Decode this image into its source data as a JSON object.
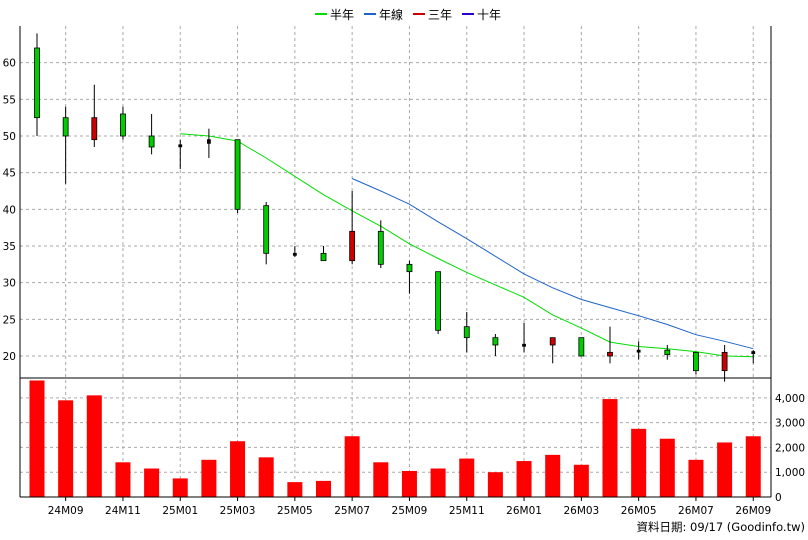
{
  "legend": [
    {
      "name": "半年",
      "color": "#00dd00"
    },
    {
      "name": "年線",
      "color": "#1e64c8"
    },
    {
      "name": "三年",
      "color": "#cc0000"
    },
    {
      "name": "十年",
      "color": "#2b00cc"
    }
  ],
  "footer": {
    "text": "資料日期: 09/17  (Goodinfo.tw)"
  },
  "colors": {
    "up": "#00cc00",
    "down": "#cc0000",
    "volume": "#ff0000",
    "grid": "#aaaaaa"
  },
  "chart_data": [
    {
      "type": "candlestick",
      "x_tick_labels": [
        "24M09",
        "24M11",
        "25M01",
        "25M03",
        "25M05",
        "25M07",
        "25M09",
        "25M11",
        "26M01",
        "26M03",
        "26M05",
        "26M07",
        "26M09"
      ],
      "ylim": [
        17,
        65
      ],
      "y_ticks": [
        20,
        25,
        30,
        35,
        40,
        45,
        50,
        55,
        60
      ],
      "grid": true,
      "candles": [
        {
          "open": 52.5,
          "high": 64,
          "low": 50,
          "close": 62,
          "color": "green"
        },
        {
          "open": 50,
          "high": 54,
          "low": 43.5,
          "close": 52.5,
          "color": "green"
        },
        {
          "open": 52.5,
          "high": 57,
          "low": 48.5,
          "close": 49.5,
          "color": "red"
        },
        {
          "open": 50,
          "high": 54,
          "low": 49.5,
          "close": 53,
          "color": "green"
        },
        {
          "open": 48.5,
          "high": 53,
          "low": 47.5,
          "close": 50,
          "color": "green"
        },
        {
          "open": 48.6,
          "high": 49.5,
          "low": 45.5,
          "close": 48.8,
          "color": "black"
        },
        {
          "open": 49,
          "high": 51,
          "low": 47,
          "close": 49.5,
          "color": "black"
        },
        {
          "open": 40,
          "high": 49.5,
          "low": 39.5,
          "close": 49.5,
          "color": "green"
        },
        {
          "open": 34,
          "high": 41,
          "low": 32.5,
          "close": 40.5,
          "color": "green"
        },
        {
          "open": 33.8,
          "high": 35,
          "low": 33.5,
          "close": 34,
          "color": "black"
        },
        {
          "open": 33,
          "high": 35,
          "low": 33,
          "close": 34,
          "color": "green"
        },
        {
          "open": 37,
          "high": 42.5,
          "low": 32.5,
          "close": 33,
          "color": "red"
        },
        {
          "open": 32.5,
          "high": 38.5,
          "low": 32,
          "close": 37,
          "color": "green"
        },
        {
          "open": 31.5,
          "high": 33,
          "low": 28.5,
          "close": 32.5,
          "color": "green"
        },
        {
          "open": 23.5,
          "high": 31.5,
          "low": 23,
          "close": 31.5,
          "color": "green"
        },
        {
          "open": 22.5,
          "high": 26,
          "low": 20.5,
          "close": 24,
          "color": "green"
        },
        {
          "open": 21.5,
          "high": 23,
          "low": 20,
          "close": 22.5,
          "color": "green"
        },
        {
          "open": 21.4,
          "high": 24.5,
          "low": 20.5,
          "close": 21.6,
          "color": "black"
        },
        {
          "open": 22.5,
          "high": 22.5,
          "low": 19,
          "close": 21.5,
          "color": "red"
        },
        {
          "open": 20,
          "high": 22.5,
          "low": 20,
          "close": 22.5,
          "color": "green"
        },
        {
          "open": 20.5,
          "high": 24,
          "low": 19,
          "close": 20,
          "color": "red"
        },
        {
          "open": 20.6,
          "high": 22,
          "low": 19.5,
          "close": 20.8,
          "color": "black"
        },
        {
          "open": 20.2,
          "high": 21.5,
          "low": 19.5,
          "close": 20.8,
          "color": "green"
        },
        {
          "open": 18,
          "high": 20.5,
          "low": 17.5,
          "close": 20.5,
          "color": "green"
        },
        {
          "open": 20.5,
          "high": 21.5,
          "low": 16.5,
          "close": 18,
          "color": "red"
        },
        {
          "open": 20.4,
          "high": 20.8,
          "low": 19,
          "close": 20.6,
          "color": "black"
        }
      ],
      "series": [
        {
          "name": "半年",
          "color": "#00dd00",
          "start_index": 5,
          "values": [
            50.3,
            50,
            49.3,
            47,
            44.5,
            42,
            39.8,
            37.7,
            35.3,
            33.3,
            31.4,
            29.7,
            28,
            25.6,
            23.8,
            21.9,
            21.3,
            21,
            20.6,
            20,
            19.9
          ]
        },
        {
          "name": "年線",
          "color": "#1e64c8",
          "start_index": 11,
          "values": [
            44.2,
            42.5,
            40.7,
            38.3,
            36,
            33.6,
            31.2,
            29.3,
            27.7,
            26.6,
            25.5,
            24.3,
            22.9,
            22,
            21
          ]
        }
      ]
    },
    {
      "type": "bar",
      "series_name": "volume",
      "ylim": [
        0,
        4800
      ],
      "y_tick_labels": [
        "0",
        "1,000",
        "2,000",
        "3,000",
        "4,000"
      ],
      "y_ticks": [
        0,
        1000,
        2000,
        3000,
        4000
      ],
      "values": [
        4700,
        3900,
        4100,
        1400,
        1150,
        750,
        1500,
        2250,
        1600,
        600,
        650,
        2450,
        1400,
        1050,
        1150,
        1550,
        1000,
        1450,
        1700,
        1300,
        3950,
        2750,
        2350,
        1500,
        2200,
        2450
      ]
    }
  ]
}
